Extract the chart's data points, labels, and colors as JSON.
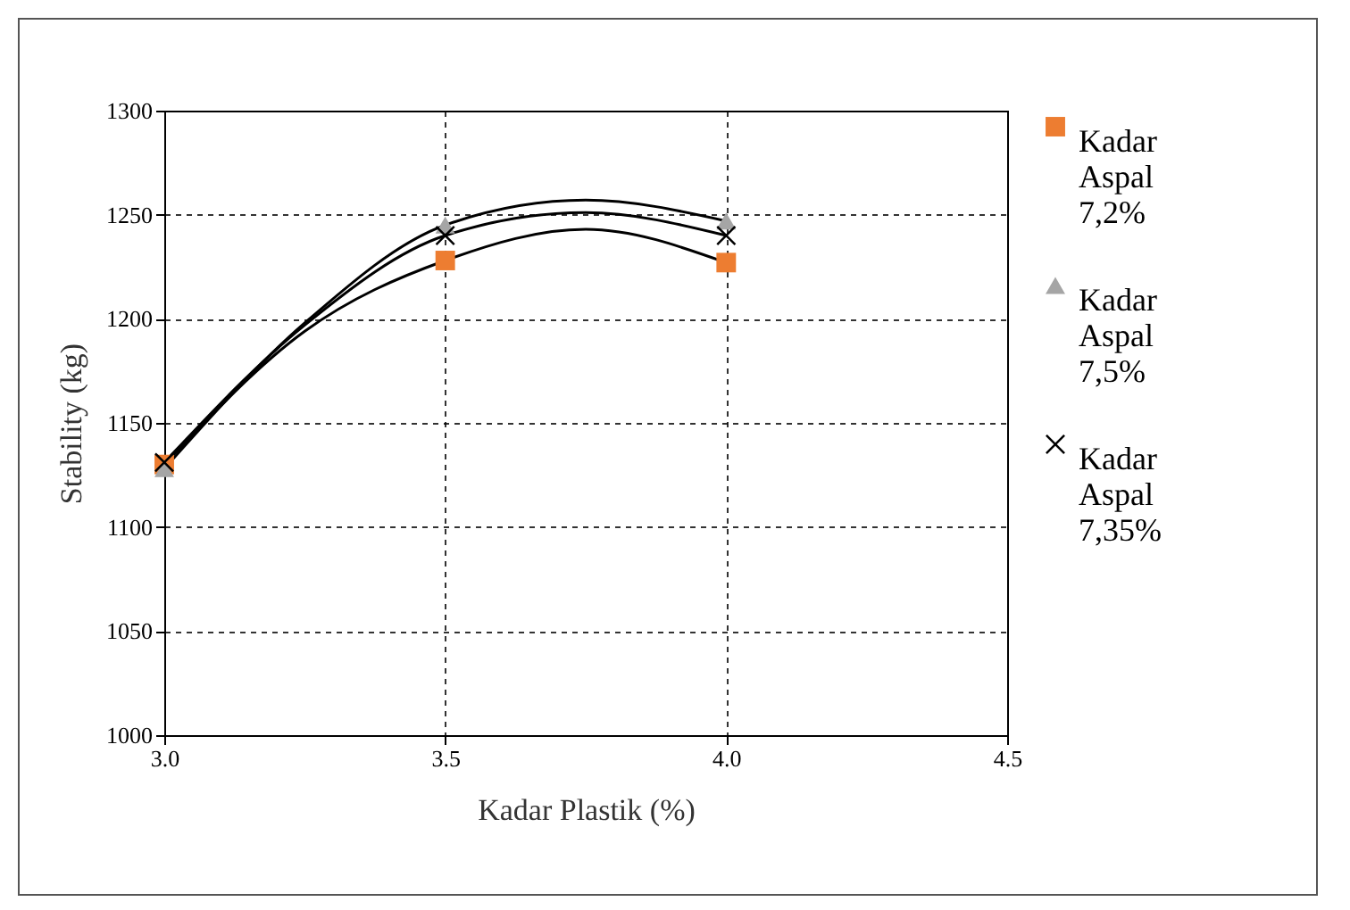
{
  "chart_data": {
    "type": "scatter",
    "xlabel": "Kadar Plastik (%)",
    "ylabel": "Stability (kg)",
    "x": [
      3.0,
      3.5,
      4.0
    ],
    "series": [
      {
        "name": "Kadar Aspal 7,2%",
        "color": "#ed7d31",
        "marker": "square",
        "values": [
          1130,
          1228,
          1227
        ]
      },
      {
        "name": "Kadar Aspal 7,5%",
        "color": "#a5a5a5",
        "marker": "triangle",
        "values": [
          1128,
          1245,
          1247
        ]
      },
      {
        "name": "Kadar Aspal 7,35%",
        "color": "#000000",
        "marker": "cross",
        "values": [
          1131,
          1240,
          1240
        ]
      },
      {
        "type": "line",
        "color": "#000000",
        "x": [
          3.0,
          3.25,
          3.5,
          3.75,
          4.0
        ],
        "values": [
          1130,
          1194,
          1228,
          1243,
          1227
        ]
      },
      {
        "type": "line",
        "color": "#000000",
        "x": [
          3.0,
          3.25,
          3.5,
          3.75,
          4.0
        ],
        "values": [
          1128,
          1198,
          1245,
          1257,
          1247
        ]
      },
      {
        "type": "line",
        "color": "#000000",
        "x": [
          3.0,
          3.25,
          3.5,
          3.75,
          4.0
        ],
        "values": [
          1131,
          1197,
          1240,
          1251,
          1240
        ]
      }
    ],
    "xlim": [
      3.0,
      4.5
    ],
    "xticks": [
      {
        "value": 3.0,
        "label": "3.0"
      },
      {
        "value": 3.5,
        "label": "3.5"
      },
      {
        "value": 4.0,
        "label": "4.0"
      },
      {
        "value": 4.5,
        "label": "4.5"
      }
    ],
    "ylim": [
      1000,
      1300
    ],
    "yticks": [
      1000,
      1050,
      1100,
      1150,
      1200,
      1250,
      1300
    ],
    "grid": true,
    "legend": "right",
    "line_style": "solid"
  }
}
